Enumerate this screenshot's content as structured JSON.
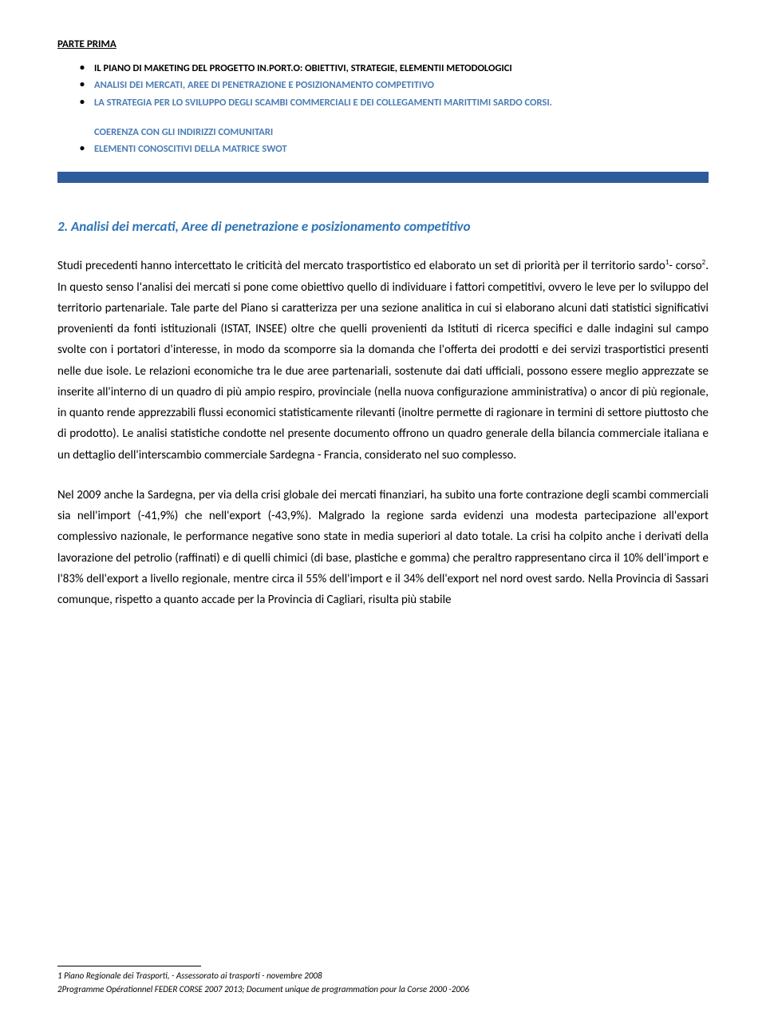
{
  "header": {
    "title": "PARTE PRIMA"
  },
  "bullets": {
    "b1": "IL PIANO DI MAKETING DEL PROGETTO IN.PORT.O: OBIETTIVI, STRATEGIE, ELEMENTII METODOLOGICI",
    "b2": "ANALISI DEI MERCATI, AREE DI PENETRAZIONE E POSIZIONAMENTO COMPETITIVO",
    "b3": "LA STRATEGIA PER LO SVILUPPO DEGLI SCAMBI COMMERCIALI E DEI COLLEGAMENTI MARITTIMI SARDO CORSI.",
    "b3_sub": "COERENZA CON GLI INDIRIZZI COMUNITARI",
    "b4": "ELEMENTI CONOSCITIVI DELLA MATRICE SWOT"
  },
  "section": {
    "heading": "2.  Analisi dei mercati, Aree di penetrazione e posizionamento competitivo"
  },
  "paragraphs": {
    "p1a": "Studi precedenti hanno intercettato le criticità del mercato trasportistico ed elaborato un set di priorità per il territorio sardo",
    "p1b": "- corso",
    "p1c": ". In questo senso l'analisi dei mercati si pone come obiettivo quello di individuare i fattori competitivi, ovvero le leve per lo sviluppo del territorio partenariale. Tale parte del Piano si caratterizza per una sezione analitica in cui si elaborano alcuni dati statistici significativi provenienti da fonti istituzionali (ISTAT, INSEE) oltre che quelli provenienti da Istituti di ricerca specifici e dalle indagini sul campo svolte con i portatori d'interesse, in modo da scomporre sia la domanda che l'offerta dei prodotti e dei servizi trasportistici presenti nelle due isole. Le relazioni economiche tra le due aree partenariali, sostenute dai dati ufficiali, possono essere meglio apprezzate se inserite all'interno di un quadro di più ampio respiro, provinciale (nella nuova configurazione amministrativa) o ancor di più regionale, in quanto rende apprezzabili flussi economici statisticamente rilevanti (inoltre permette di ragionare in termini di settore piuttosto che di prodotto). Le analisi statistiche condotte nel presente documento offrono un quadro generale della bilancia commerciale italiana e un dettaglio dell'interscambio commerciale Sardegna - Francia, considerato nel suo complesso.",
    "p2": "Nel 2009 anche la Sardegna, per via della crisi globale dei mercati finanziari, ha subito una forte contrazione degli scambi commerciali sia nell'import (-41,9%) che nell'export (-43,9%). Malgrado la regione sarda evidenzi una modesta partecipazione all'export complessivo nazionale, le performance negative sono state in media superiori al dato totale. La crisi ha colpito anche i derivati della lavorazione del petrolio (raffinati) e di quelli chimici (di base, plastiche e gomma) che peraltro rappresentano circa il 10% dell'import e l'83% dell'export a livello regionale, mentre circa il 55% dell'import e il 34% dell'export nel nord ovest sardo. Nella Provincia di Sassari comunque, rispetto a quanto accade per la Provincia di Cagliari, risulta più stabile"
  },
  "footnotes": {
    "f1_num": "1 ",
    "f1_text": "Piano Regionale dei Trasporti, - Assessorato ai trasporti - novembre 2008",
    "f2_num": "2",
    "f2_text": "Programme Opérationnel FEDER CORSE 2007 2013; Document unique de programmation pour la Corse 2000 -2006"
  },
  "sup": {
    "one": "1",
    "two": "2"
  }
}
